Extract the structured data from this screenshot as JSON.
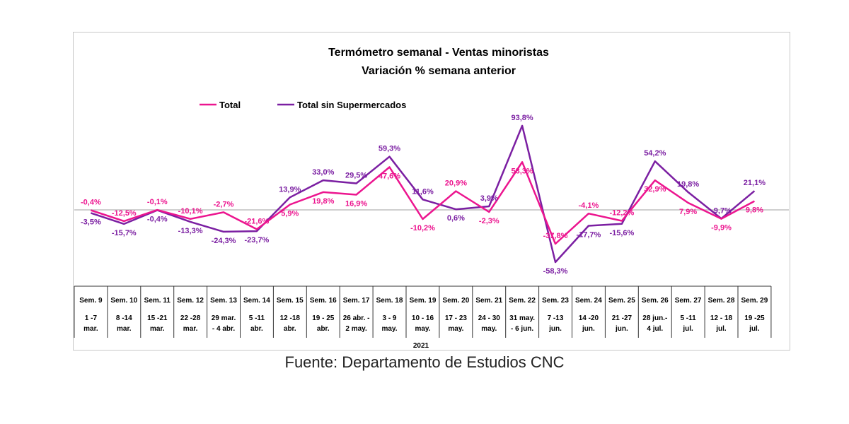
{
  "chart_data": {
    "type": "line",
    "title": "Termómetro semanal - Ventas minoristas",
    "subtitle": "Variación % semana anterior",
    "year_label": "2021",
    "weeks": [
      "Sem. 9",
      "Sem. 10",
      "Sem. 11",
      "Sem. 12",
      "Sem. 13",
      "Sem. 14",
      "Sem. 15",
      "Sem. 16",
      "Sem. 17",
      "Sem. 18",
      "Sem. 19",
      "Sem. 20",
      "Sem. 21",
      "Sem. 22",
      "Sem. 23",
      "Sem. 24",
      "Sem. 25",
      "Sem. 26",
      "Sem. 27",
      "Sem. 28",
      "Sem. 29"
    ],
    "date_ranges": [
      [
        "1 -7",
        "mar."
      ],
      [
        "8 -14",
        "mar."
      ],
      [
        "15 -21",
        "mar."
      ],
      [
        "22 -28",
        "mar."
      ],
      [
        "29 mar.",
        "- 4 abr."
      ],
      [
        "5 -11",
        "abr."
      ],
      [
        "12 -18",
        "abr."
      ],
      [
        "19 - 25",
        "abr."
      ],
      [
        "26 abr. -",
        "2 may."
      ],
      [
        "3 - 9",
        "may."
      ],
      [
        "10 - 16",
        "may."
      ],
      [
        "17 - 23",
        "may."
      ],
      [
        "24 - 30",
        "may."
      ],
      [
        "31 may.",
        "- 6 jun."
      ],
      [
        "7 -13",
        "jun."
      ],
      [
        "14 -20",
        "jun."
      ],
      [
        "21 -27",
        "jun."
      ],
      [
        "28 jun.-",
        "4 jul."
      ],
      [
        "5 -11",
        "jul."
      ],
      [
        "12 - 18",
        "jul."
      ],
      [
        "19 -25",
        "jul."
      ]
    ],
    "series": [
      {
        "name": "Total",
        "color": "#ec158f",
        "values": [
          -0.4,
          -12.5,
          -0.1,
          -10.1,
          -2.7,
          -21.6,
          5.9,
          19.8,
          16.9,
          47.6,
          -10.2,
          20.9,
          -2.3,
          53.3,
          -37.8,
          -4.1,
          -12.2,
          32.9,
          7.9,
          -9.9,
          9.8
        ],
        "labels": [
          "-0,4%",
          "-12,5%",
          "-0,1%",
          "-10,1%",
          "-2,7%",
          "-21,6%",
          "5,9%",
          "19,8%",
          "16,9%",
          "47,6%",
          "-10,2%",
          "20,9%",
          "-2,3%",
          "53,3%",
          "-37,8%",
          "-4,1%",
          "-12,2%",
          "32,9%",
          "7,9%",
          "-9,9%",
          "9,8%"
        ]
      },
      {
        "name": "Total sin Supermercados",
        "color": "#7b1fa2",
        "values": [
          -3.5,
          -15.7,
          -0.4,
          -13.3,
          -24.3,
          -23.7,
          13.9,
          33.0,
          29.5,
          59.3,
          11.6,
          0.6,
          3.9,
          93.8,
          -58.3,
          -17.7,
          -15.6,
          54.2,
          19.8,
          -9.7,
          21.1
        ],
        "labels": [
          "-3,5%",
          "-15,7%",
          "-0,4%",
          "-13,3%",
          "-24,3%",
          "-23,7%",
          "13,9%",
          "33,0%",
          "29,5%",
          "59,3%",
          "11,6%",
          "0,6%",
          "3,9%",
          "93,8%",
          "-58,3%",
          "-17,7%",
          "-15,6%",
          "54,2%",
          "19,8%",
          "-9,7%",
          "21,1%"
        ]
      }
    ],
    "ylim": [
      -70,
      100
    ],
    "legend_position": "top-left",
    "grid": false
  },
  "source_text": "Fuente: Departamento de Estudios CNC"
}
